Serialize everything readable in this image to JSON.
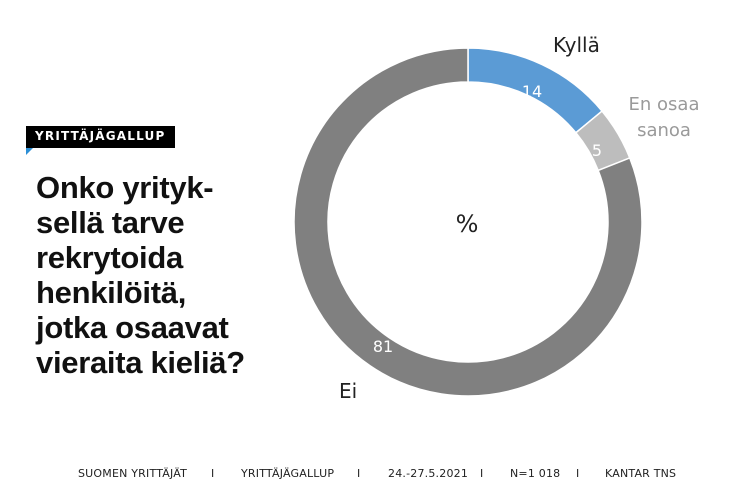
{
  "badge": "YRITTÄJÄGALLUP",
  "question_lines": [
    "Onko yrityk-",
    "sellä tarve",
    "rekrytoida",
    "henkilöitä,",
    "jotka osaavat",
    "vieraita kieliä?"
  ],
  "chart_data": {
    "type": "pie",
    "donut": true,
    "center_label": "%",
    "slices": [
      {
        "label": "Kyllä",
        "value": 14,
        "color": "#5b9bd5"
      },
      {
        "label": "En osaa sanoa",
        "value": 5,
        "color": "#bdbdbd"
      },
      {
        "label": "Ei",
        "value": 81,
        "color": "#808080"
      }
    ]
  },
  "footer": {
    "publisher": "SUOMEN YRITTÄJÄT",
    "survey": "YRITTÄJÄGALLUP",
    "dates": "24.-27.5.2021",
    "sample": "N=1 018",
    "pollster": "KANTAR TNS",
    "separator": "I"
  }
}
